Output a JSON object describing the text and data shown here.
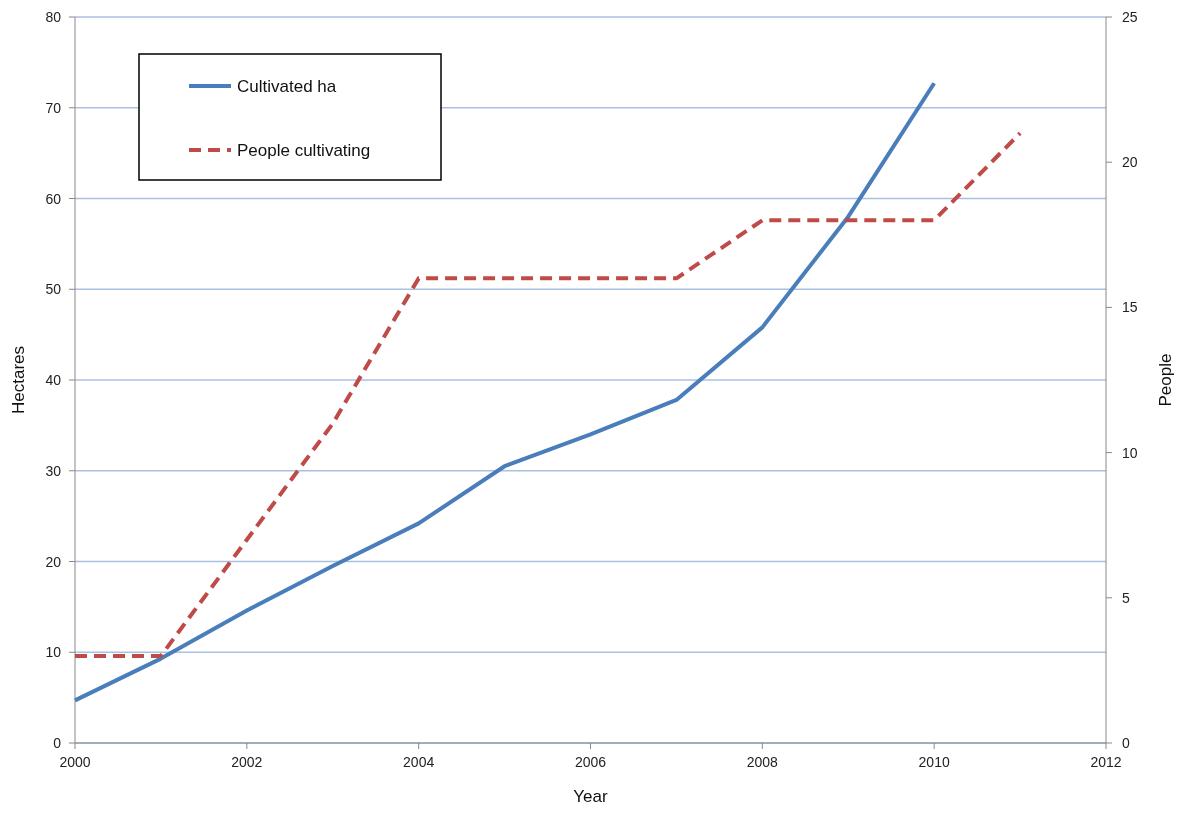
{
  "chart_data": {
    "type": "line",
    "xlabel": "Year",
    "ylabel": "Hectares",
    "y2label": "People",
    "xlim": [
      2000,
      2012
    ],
    "xticks": [
      2000,
      2002,
      2004,
      2006,
      2008,
      2010,
      2012
    ],
    "ylim": [
      0,
      80
    ],
    "yticks": [
      0,
      10,
      20,
      30,
      40,
      50,
      60,
      70,
      80
    ],
    "y2lim": [
      0,
      25
    ],
    "y2ticks": [
      0,
      5,
      10,
      15,
      20,
      25
    ],
    "grid": "y",
    "legend": "top left",
    "series": [
      {
        "name": "Cultivated ha",
        "color": "#4a7ebb",
        "line_style": "solid",
        "x": [
          2000,
          2001,
          2002,
          2003,
          2004,
          2005,
          2006,
          2007,
          2008,
          2009,
          2010
        ],
        "values": [
          4.7,
          9.3,
          14.6,
          19.5,
          24.2,
          30.5,
          34,
          37.8,
          45.8,
          58,
          72.7
        ]
      },
      {
        "name": "People cultivating",
        "color": "#be4b48",
        "line_style": "dashed",
        "axis": "y2",
        "x": [
          2000,
          2001,
          2002,
          2003,
          2004,
          2005,
          2006,
          2007,
          2008,
          2009,
          2010,
          2011
        ],
        "values": [
          3,
          3,
          7,
          11,
          16,
          16,
          16,
          16,
          18,
          18,
          18,
          21
        ]
      }
    ]
  }
}
